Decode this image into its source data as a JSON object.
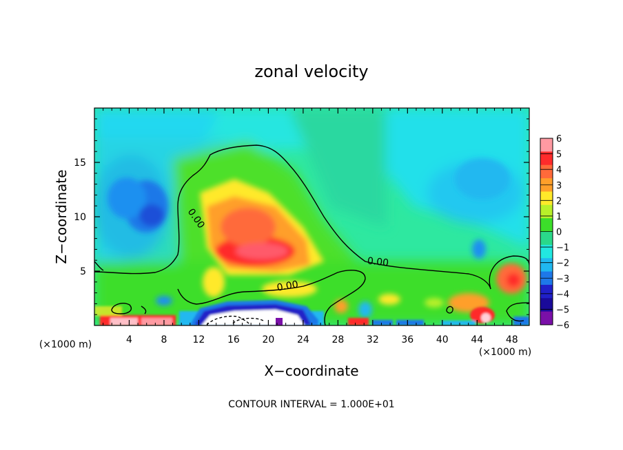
{
  "chart_data": {
    "type": "heatmap",
    "title": "zonal velocity",
    "xlabel": "X−coordinate",
    "ylabel": "Z−coordinate",
    "x_units": "(×1000 m)",
    "x_units_right": "(×1000 m)",
    "xlim": [
      0,
      50
    ],
    "ylim": [
      0,
      20
    ],
    "x_ticks": [
      4,
      8,
      12,
      16,
      20,
      24,
      28,
      32,
      36,
      40,
      44,
      48
    ],
    "x_tick_labels": [
      "4",
      "8",
      "12",
      "16",
      "20",
      "24",
      "28",
      "32",
      "36",
      "40",
      "44",
      "48"
    ],
    "y_ticks": [
      5,
      10,
      15
    ],
    "y_tick_labels": [
      "5",
      "10",
      "15"
    ],
    "colorbar": {
      "range": [
        -6,
        6
      ],
      "ticks": [
        "6",
        "5",
        "4",
        "3",
        "2",
        "1",
        "0",
        "−1",
        "−2",
        "−3",
        "−4",
        "−5",
        "−6"
      ],
      "colors": [
        "#ff9aa2",
        "#ff2b2b",
        "#ff6a3a",
        "#ff9f2a",
        "#ffe92a",
        "#b8f02a",
        "#3cde2a",
        "#2ad88a",
        "#22e8e0",
        "#20b8f0",
        "#1e78e8",
        "#2020c8",
        "#1a0a9a",
        "#7a10a8"
      ]
    },
    "contour_labels": [
      "0.00",
      "0.00",
      "0.00"
    ],
    "annotation": "CONTOUR INTERVAL = 1.000E+01",
    "features": [
      {
        "x": 18,
        "z": 7,
        "value": 5.5
      },
      {
        "x": 21,
        "z": 9,
        "value": 3.5
      },
      {
        "x": 6,
        "z": 10.5,
        "value": -4
      },
      {
        "x": 49,
        "z": 4,
        "value": 4
      },
      {
        "x": 18,
        "z": 1,
        "value": -6
      },
      {
        "x": 6,
        "z": 0.5,
        "value": 5.5
      },
      {
        "x": 45,
        "z": 1.2,
        "value": 5
      },
      {
        "x": 43,
        "z": 6.5,
        "value": -3
      }
    ]
  }
}
